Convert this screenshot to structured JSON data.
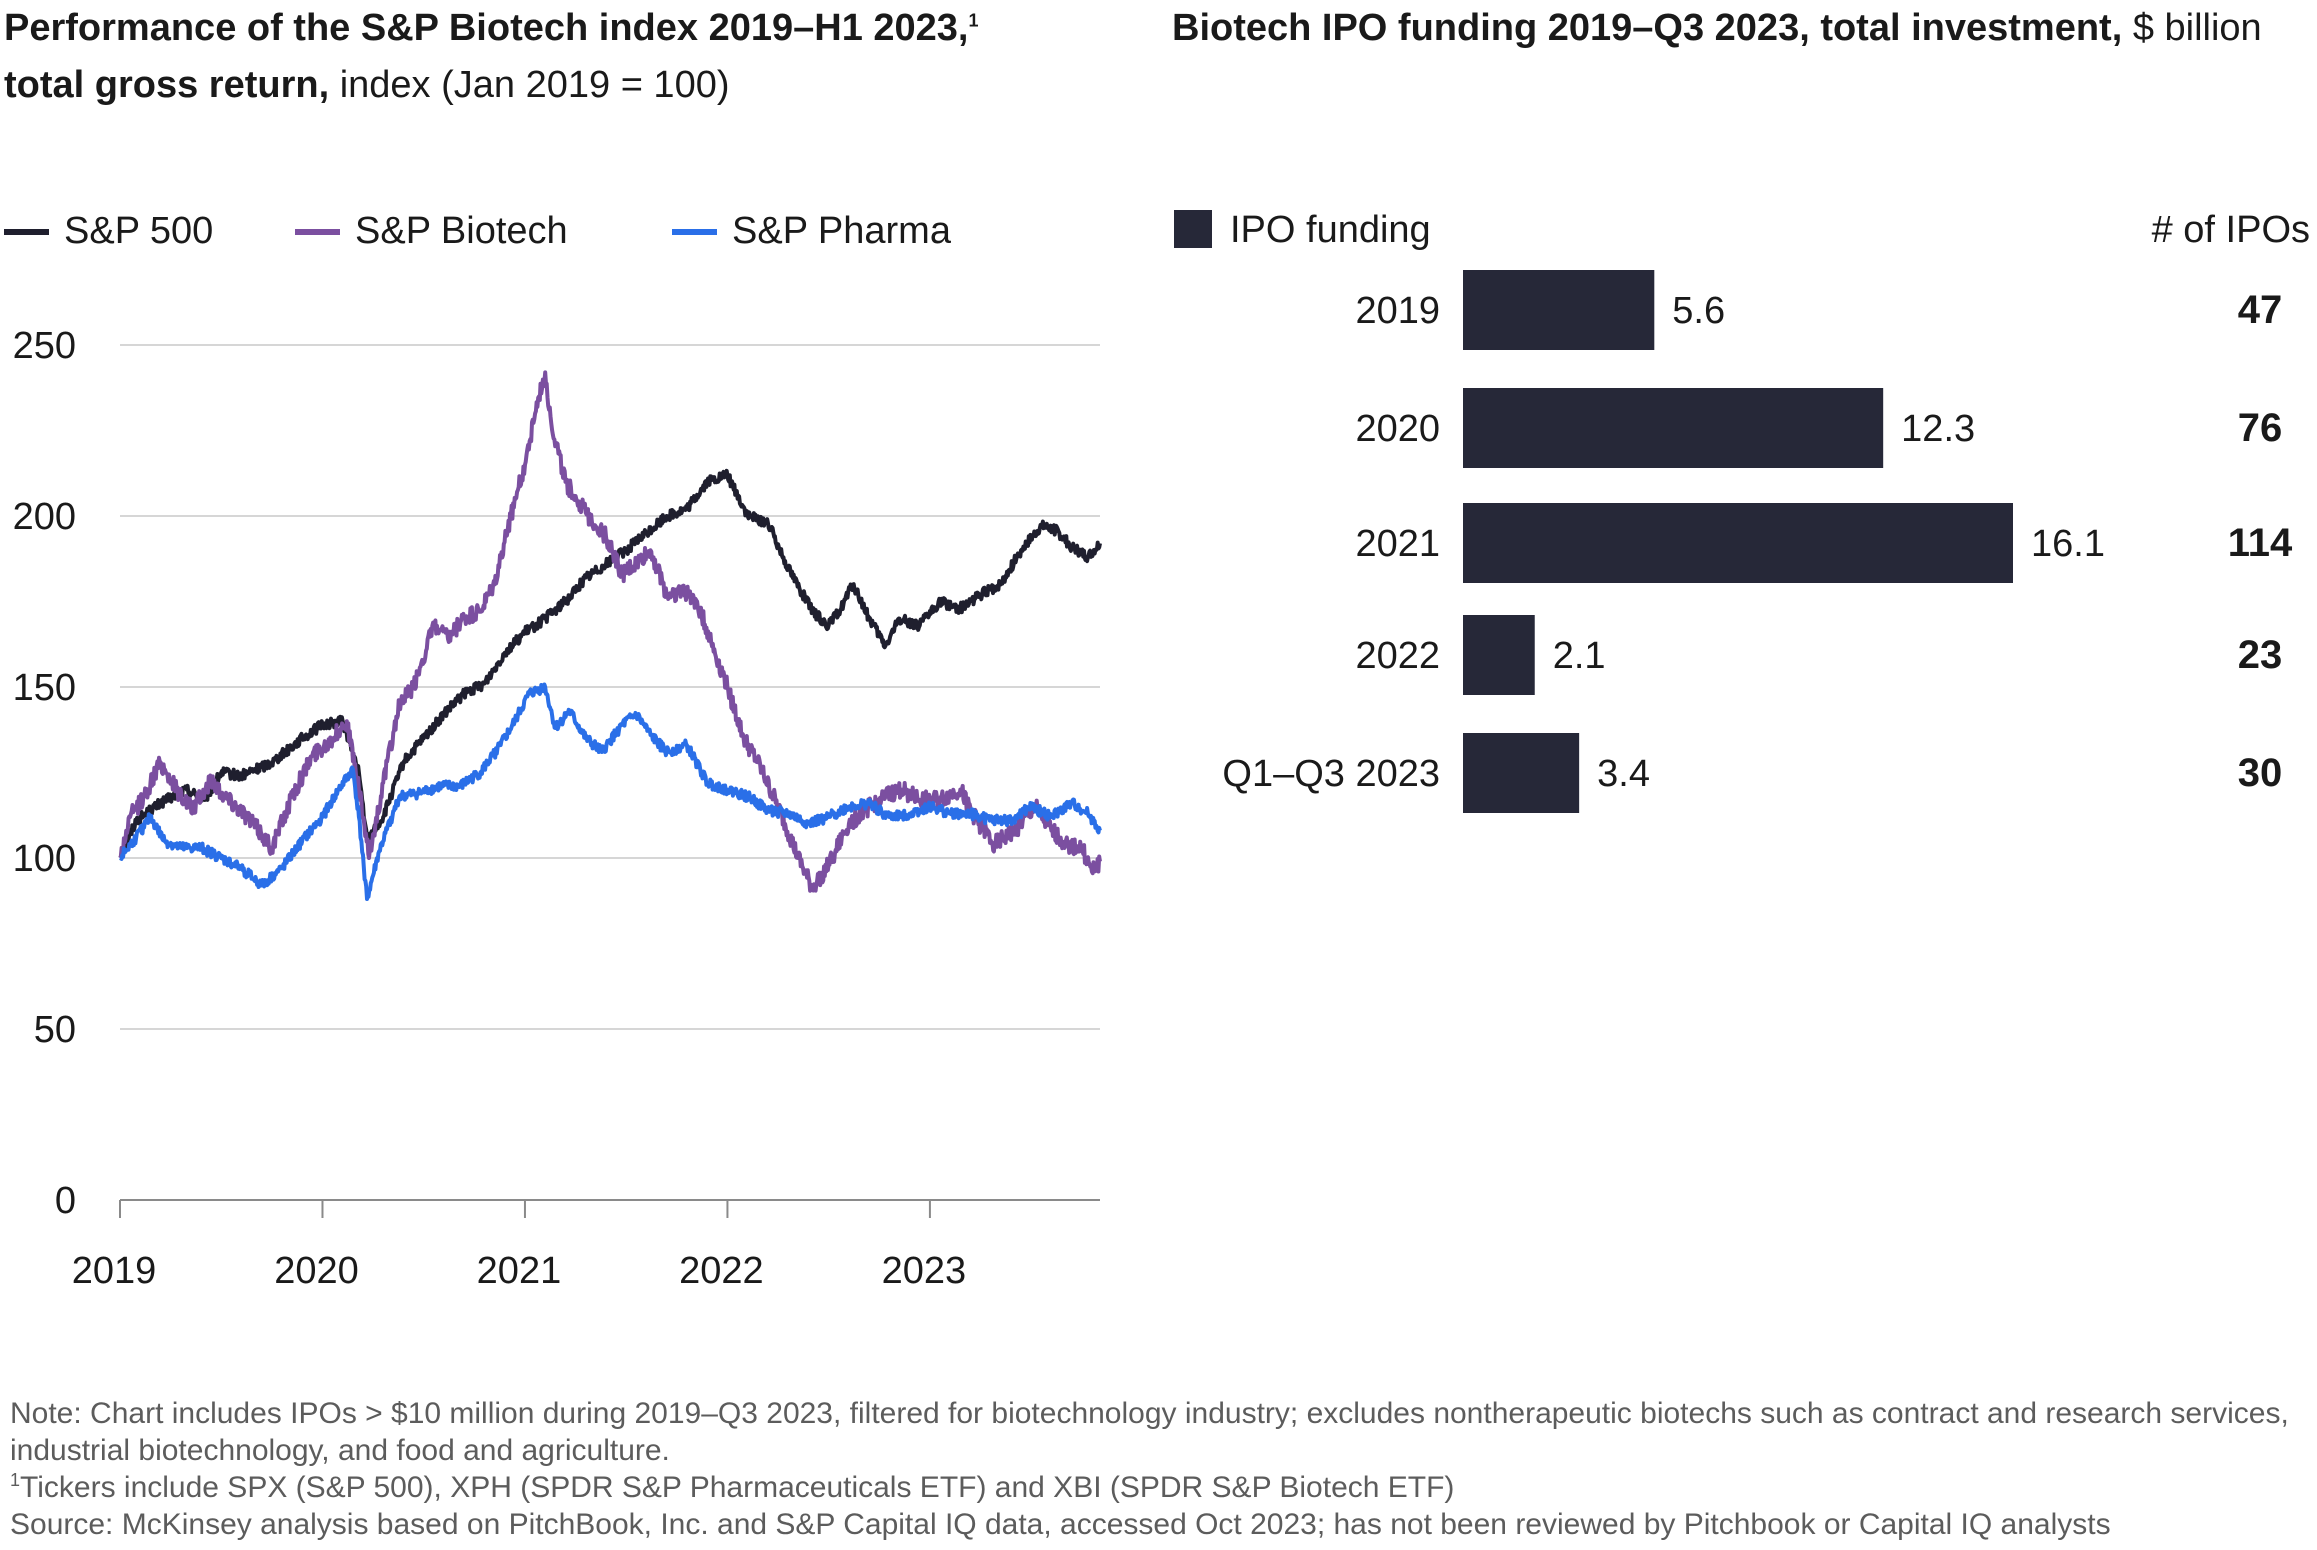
{
  "left_title": {
    "bold": "Performance of the S&P Biotech index 2019–H1 2023,",
    "footnote_mark": "1",
    "bold2": "total gross return,",
    "light": " index (Jan 2019 = 100)"
  },
  "right_title": {
    "bold": "Biotech IPO funding 2019–Q3 2023, total investment,",
    "light": " $ billion"
  },
  "notes": {
    "note": "Note: Chart includes IPOs > $10 million during 2019–Q3 2023, filtered for biotechnology industry; excludes nontherapeutic biotechs such as contract and research services, industrial biotechnology, and food and agriculture.",
    "footnote_mark": "1",
    "footnote": "Tickers include SPX (S&P 500), XPH (SPDR S&P Pharmaceuticals ETF) and XBI (SPDR S&P Biotech ETF)",
    "source": "Source: McKinsey analysis based on PitchBook, Inc. and S&P Capital IQ data, accessed Oct 2023; has not been reviewed by Pitchbook or Capital IQ analysts"
  },
  "chart_data": [
    {
      "type": "line",
      "ylim": [
        0,
        250
      ],
      "yticks": [
        0,
        50,
        100,
        150,
        200,
        250
      ],
      "xlim": [
        2019,
        2023.84
      ],
      "xticks": [
        2019,
        2020,
        2021,
        2022,
        2023
      ],
      "xtick_labels": [
        "2019",
        "2020",
        "2021",
        "2022",
        "2023"
      ],
      "grid": true,
      "legend_position": "top-left",
      "series": [
        {
          "name": "S&P 500",
          "color": "#1f1f2e",
          "points": [
            [
              2019,
              100
            ],
            [
              2019.08,
              111
            ],
            [
              2019.2,
              116
            ],
            [
              2019.33,
              120
            ],
            [
              2019.42,
              117
            ],
            [
              2019.5,
              125
            ],
            [
              2019.6,
              124
            ],
            [
              2019.75,
              128
            ],
            [
              2019.9,
              135
            ],
            [
              2020,
              139
            ],
            [
              2020.1,
              140
            ],
            [
              2020.18,
              125
            ],
            [
              2020.22,
              105
            ],
            [
              2020.3,
              112
            ],
            [
              2020.4,
              128
            ],
            [
              2020.5,
              135
            ],
            [
              2020.6,
              142
            ],
            [
              2020.7,
              148
            ],
            [
              2020.8,
              151
            ],
            [
              2020.9,
              160
            ],
            [
              2021,
              166
            ],
            [
              2021.1,
              170
            ],
            [
              2021.2,
              175
            ],
            [
              2021.3,
              182
            ],
            [
              2021.4,
              186
            ],
            [
              2021.5,
              190
            ],
            [
              2021.6,
              195
            ],
            [
              2021.7,
              200
            ],
            [
              2021.8,
              202
            ],
            [
              2021.9,
              210
            ],
            [
              2022,
              212
            ],
            [
              2022.1,
              200
            ],
            [
              2022.2,
              198
            ],
            [
              2022.3,
              185
            ],
            [
              2022.42,
              172
            ],
            [
              2022.5,
              168
            ],
            [
              2022.55,
              172
            ],
            [
              2022.62,
              180
            ],
            [
              2022.7,
              170
            ],
            [
              2022.78,
              162
            ],
            [
              2022.85,
              170
            ],
            [
              2022.95,
              168
            ],
            [
              2023.05,
              175
            ],
            [
              2023.15,
              173
            ],
            [
              2023.25,
              177
            ],
            [
              2023.35,
              180
            ],
            [
              2023.45,
              190
            ],
            [
              2023.55,
              197
            ],
            [
              2023.62,
              196
            ],
            [
              2023.7,
              191
            ],
            [
              2023.78,
              188
            ],
            [
              2023.84,
              192
            ]
          ]
        },
        {
          "name": "S&P Biotech",
          "color": "#7b4fa0",
          "points": [
            [
              2019,
              100
            ],
            [
              2019.05,
              112
            ],
            [
              2019.12,
              118
            ],
            [
              2019.2,
              128
            ],
            [
              2019.28,
              120
            ],
            [
              2019.36,
              114
            ],
            [
              2019.45,
              123
            ],
            [
              2019.52,
              118
            ],
            [
              2019.6,
              114
            ],
            [
              2019.7,
              107
            ],
            [
              2019.75,
              103
            ],
            [
              2019.85,
              118
            ],
            [
              2019.95,
              130
            ],
            [
              2020.05,
              135
            ],
            [
              2020.12,
              140
            ],
            [
              2020.18,
              120
            ],
            [
              2020.23,
              100
            ],
            [
              2020.3,
              122
            ],
            [
              2020.38,
              145
            ],
            [
              2020.45,
              150
            ],
            [
              2020.55,
              168
            ],
            [
              2020.62,
              164
            ],
            [
              2020.7,
              170
            ],
            [
              2020.78,
              172
            ],
            [
              2020.85,
              180
            ],
            [
              2020.93,
              200
            ],
            [
              2021,
              215
            ],
            [
              2021.05,
              230
            ],
            [
              2021.1,
              242
            ],
            [
              2021.13,
              227
            ],
            [
              2021.2,
              210
            ],
            [
              2021.3,
              201
            ],
            [
              2021.4,
              194
            ],
            [
              2021.48,
              183
            ],
            [
              2021.55,
              186
            ],
            [
              2021.62,
              190
            ],
            [
              2021.7,
              177
            ],
            [
              2021.78,
              178
            ],
            [
              2021.85,
              175
            ],
            [
              2021.92,
              163
            ],
            [
              2022,
              150
            ],
            [
              2022.08,
              135
            ],
            [
              2022.15,
              128
            ],
            [
              2022.25,
              115
            ],
            [
              2022.35,
              100
            ],
            [
              2022.42,
              91
            ],
            [
              2022.5,
              98
            ],
            [
              2022.6,
              110
            ],
            [
              2022.7,
              115
            ],
            [
              2022.78,
              118
            ],
            [
              2022.86,
              120
            ],
            [
              2022.95,
              117
            ],
            [
              2023.05,
              117
            ],
            [
              2023.15,
              120
            ],
            [
              2023.22,
              112
            ],
            [
              2023.32,
              104
            ],
            [
              2023.42,
              108
            ],
            [
              2023.52,
              115
            ],
            [
              2023.6,
              108
            ],
            [
              2023.68,
              104
            ],
            [
              2023.75,
              103
            ],
            [
              2023.8,
              96
            ],
            [
              2023.84,
              99
            ]
          ]
        },
        {
          "name": "S&P Pharma",
          "color": "#2a6fe8",
          "points": [
            [
              2019,
              100
            ],
            [
              2019.08,
              106
            ],
            [
              2019.15,
              112
            ],
            [
              2019.22,
              105
            ],
            [
              2019.3,
              103
            ],
            [
              2019.4,
              103
            ],
            [
              2019.5,
              100
            ],
            [
              2019.6,
              97
            ],
            [
              2019.7,
              92
            ],
            [
              2019.8,
              97
            ],
            [
              2019.9,
              105
            ],
            [
              2020,
              112
            ],
            [
              2020.08,
              120
            ],
            [
              2020.15,
              126
            ],
            [
              2020.18,
              112
            ],
            [
              2020.22,
              88
            ],
            [
              2020.28,
              102
            ],
            [
              2020.38,
              118
            ],
            [
              2020.48,
              119
            ],
            [
              2020.58,
              121
            ],
            [
              2020.68,
              121
            ],
            [
              2020.78,
              125
            ],
            [
              2020.88,
              133
            ],
            [
              2020.95,
              140
            ],
            [
              2021.02,
              148
            ],
            [
              2021.1,
              150
            ],
            [
              2021.15,
              138
            ],
            [
              2021.22,
              143
            ],
            [
              2021.3,
              135
            ],
            [
              2021.38,
              131
            ],
            [
              2021.48,
              139
            ],
            [
              2021.55,
              142
            ],
            [
              2021.62,
              136
            ],
            [
              2021.7,
              131
            ],
            [
              2021.8,
              133
            ],
            [
              2021.9,
              122
            ],
            [
              2022,
              120
            ],
            [
              2022.1,
              118
            ],
            [
              2022.2,
              114
            ],
            [
              2022.3,
              113
            ],
            [
              2022.4,
              110
            ],
            [
              2022.5,
              112
            ],
            [
              2022.6,
              115
            ],
            [
              2022.7,
              116
            ],
            [
              2022.8,
              112
            ],
            [
              2022.9,
              113
            ],
            [
              2023,
              115
            ],
            [
              2023.1,
              113
            ],
            [
              2023.2,
              113
            ],
            [
              2023.3,
              111
            ],
            [
              2023.4,
              111
            ],
            [
              2023.5,
              115
            ],
            [
              2023.6,
              112
            ],
            [
              2023.7,
              116
            ],
            [
              2023.78,
              113
            ],
            [
              2023.84,
              108
            ]
          ]
        }
      ]
    },
    {
      "type": "bar",
      "orientation": "horizontal",
      "legend_position": "top-left",
      "categories": [
        "2019",
        "2020",
        "2021",
        "2022",
        "Q1–Q3 2023"
      ],
      "series": [
        {
          "name": "IPO funding",
          "color": "#262838",
          "values": [
            5.6,
            12.3,
            16.1,
            2.1,
            3.4
          ]
        }
      ],
      "value_labels": [
        "5.6",
        "12.3",
        "16.1",
        "2.1",
        "3.4"
      ],
      "xlim": [
        0,
        16.1
      ],
      "side_column": {
        "header": "# of IPOs",
        "values": [
          "47",
          "76",
          "114",
          "23",
          "30"
        ]
      }
    }
  ]
}
